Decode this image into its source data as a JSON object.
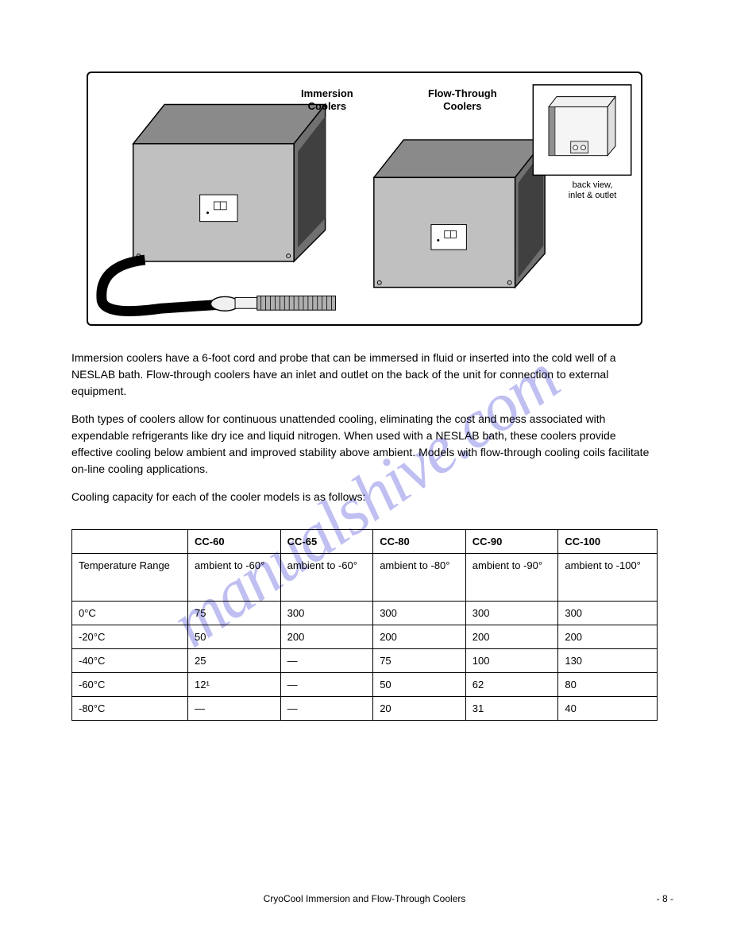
{
  "figure": {
    "label_immersion": "Immersion\nCoolers",
    "label_flowthrough": "Flow-Through\nCoolers",
    "label_backview": "back view,\ninlet & outlet",
    "colors": {
      "box_body": "#c0c0c0",
      "box_top": "#8a8a8a",
      "box_side": "#e0e0e0",
      "grille": "#606060",
      "border": "#000000",
      "switch_panel": "#ffffff",
      "hose": "#000000",
      "probe": "#d0d0d0"
    }
  },
  "intro": {
    "p1": "Immersion coolers have a 6-foot cord and probe that can be immersed in fluid or inserted into the cold well of a NESLAB bath. Flow-through coolers have an inlet and outlet on the back of the unit for connection to external equipment.",
    "p2": "Both types of coolers allow for continuous unattended cooling, eliminating the cost and mess associated with expendable refrigerants like dry ice and liquid nitrogen. When used with a NESLAB bath, these coolers provide effective cooling below ambient and improved stability above ambient. Models with flow-through cooling coils facilitate on-line cooling applications.",
    "p3": "Cooling capacity for each of the cooler models is as follows:"
  },
  "table": {
    "headers": [
      "",
      "CC-60",
      "CC-65",
      "CC-80",
      "CC-90",
      "CC-100"
    ],
    "rows": [
      [
        "Temperature Range",
        "ambient to -60°",
        "ambient to -60°",
        "ambient to -80°",
        "ambient to -90°",
        "ambient to -100°"
      ],
      [
        "0°C",
        "75",
        "300",
        "300",
        "300",
        "300"
      ],
      [
        "-20°C",
        "50",
        "200",
        "200",
        "200",
        "200"
      ],
      [
        "-40°C",
        "25",
        "—",
        "75",
        "100",
        "130"
      ],
      [
        "-60°C",
        "12¹",
        "—",
        "50",
        "62",
        "80"
      ],
      [
        "-80°C",
        "—",
        "—",
        "20",
        "31",
        "40"
      ]
    ]
  },
  "footer": {
    "title": "CryoCool Immersion and Flow-Through Coolers",
    "page_num": "- 8 -"
  },
  "watermark_text": "manualshive.com"
}
